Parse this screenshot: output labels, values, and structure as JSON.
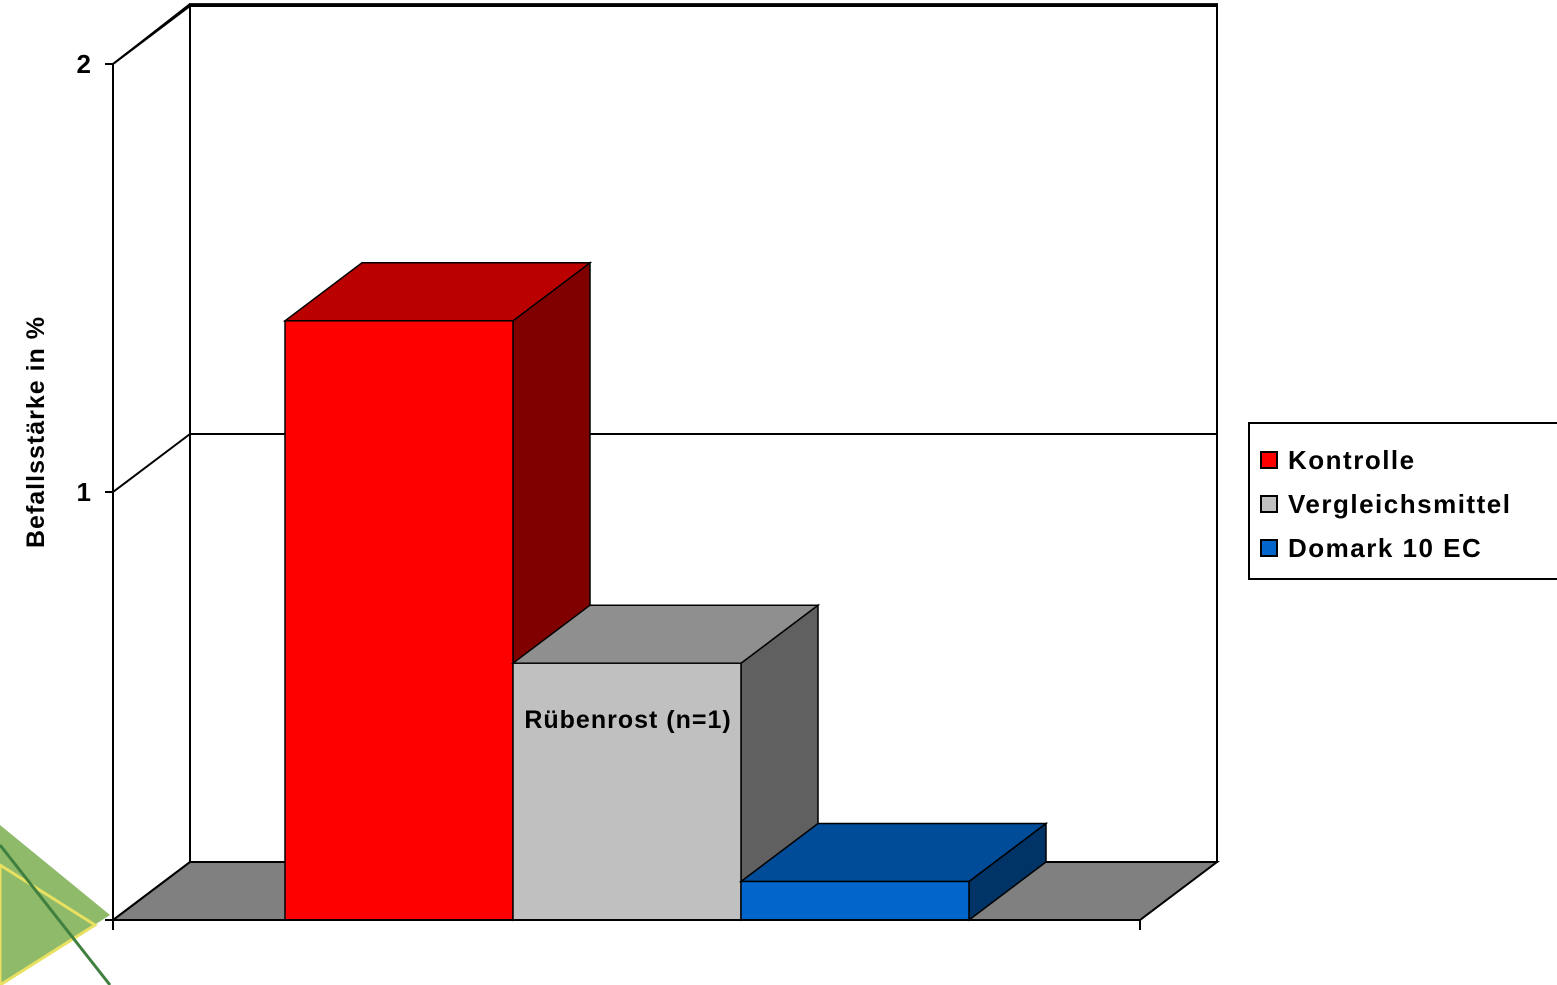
{
  "chart_data": {
    "type": "bar",
    "three_d": true,
    "categories": [
      "Rübenrost (n=1)"
    ],
    "series": [
      {
        "name": "Kontrolle",
        "values": [
          1.4
        ],
        "color": "#ff0000",
        "top_color": "#bb0000",
        "side_color": "#800000"
      },
      {
        "name": "Vergleichsmittel",
        "values": [
          0.6
        ],
        "color": "#c0c0c0",
        "top_color": "#8f8f8f",
        "side_color": "#606060"
      },
      {
        "name": "Domark 10 EC",
        "values": [
          0.09
        ],
        "color": "#0066cc",
        "top_color": "#004c99",
        "side_color": "#003366"
      }
    ],
    "title": "",
    "xlabel": "Rübenrost (n=1)",
    "ylabel": "Befallsstärke in %",
    "ylim": [
      0,
      2
    ],
    "yticks": [
      "0",
      "1",
      "2"
    ],
    "grid": true,
    "legend_position": "right",
    "floor_color": "#808080"
  }
}
